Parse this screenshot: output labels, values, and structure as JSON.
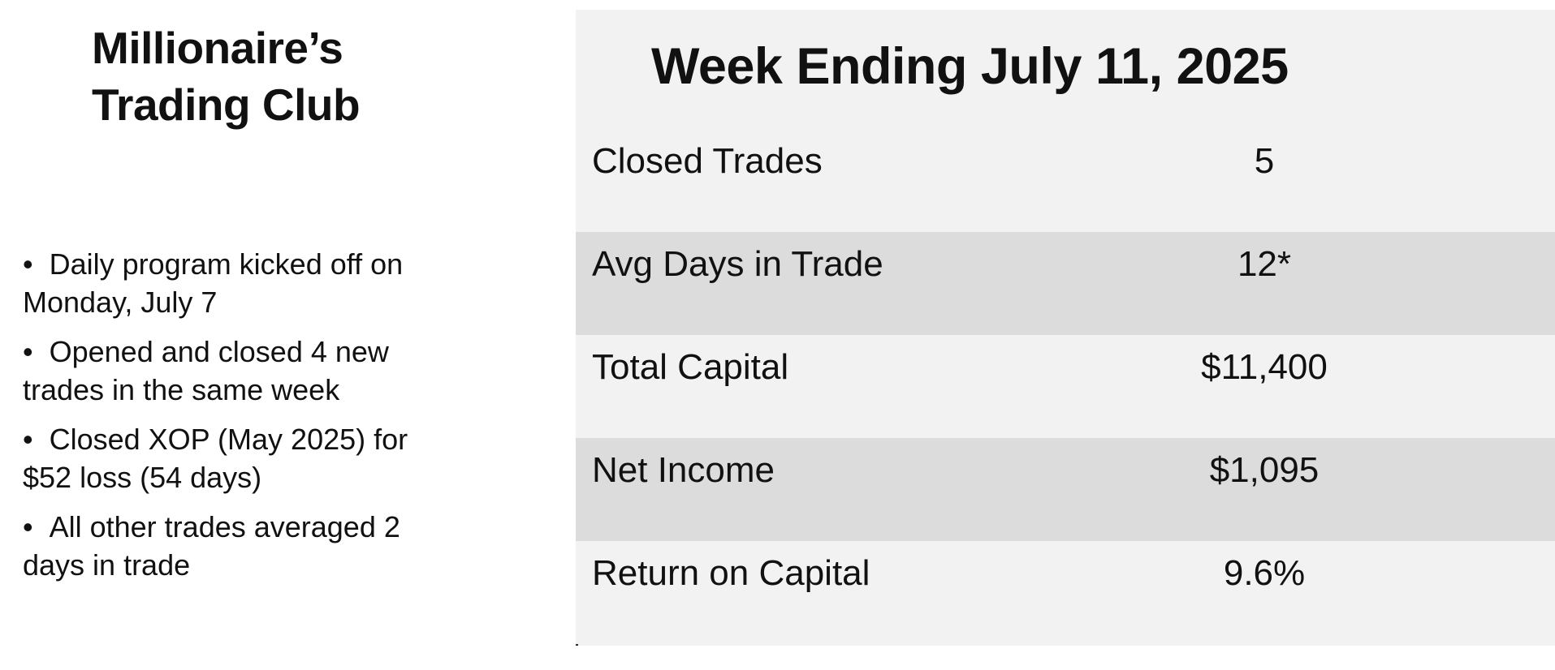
{
  "club": {
    "title_line1": "Millionaire’s",
    "title_line2": "Trading Club"
  },
  "bullet_glyph": "•",
  "bullets": [
    {
      "line1": "Daily program kicked off on",
      "line2": "Monday, July 7"
    },
    {
      "line1": "Opened and closed 4 new",
      "line2": "trades in the same week"
    },
    {
      "line1": "Closed XOP (May 2025) for",
      "line2": "$52 loss (54 days)"
    },
    {
      "line1": "All other trades averaged 2",
      "line2": "days in trade"
    }
  ],
  "summary": {
    "title": "Week Ending July 11, 2025",
    "rows": [
      {
        "label": "Closed Trades",
        "value": "5"
      },
      {
        "label": "Avg Days in Trade",
        "value": "12*"
      },
      {
        "label": "Total Capital",
        "value": "$11,400"
      },
      {
        "label": "Net Income",
        "value": "$1,095"
      },
      {
        "label": "Return on Capital",
        "value": "9.6%"
      }
    ]
  },
  "colors": {
    "panel_background": "#f2f2f2",
    "alternate_row_background": "#dcdcdc",
    "divider": "#2b2b2b",
    "text": "#111111"
  }
}
